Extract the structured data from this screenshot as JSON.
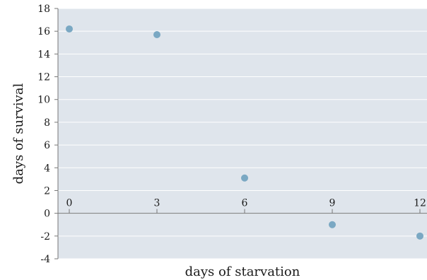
{
  "chart_data": {
    "type": "scatter",
    "title": "",
    "xlabel": "days of starvation",
    "ylabel": "days of survival",
    "xlim": [
      0,
      12
    ],
    "ylim": [
      -4,
      18
    ],
    "x_ticks": [
      0,
      3,
      6,
      9,
      12
    ],
    "y_ticks": [
      -4,
      -2,
      0,
      2,
      4,
      6,
      8,
      10,
      12,
      14,
      16,
      18
    ],
    "x_tick_labels": [
      "0",
      "3",
      "6",
      "9",
      "12"
    ],
    "y_tick_labels": [
      "-4",
      "-2",
      "0",
      "2",
      "4",
      "6",
      "8",
      "10",
      "12",
      "14",
      "16",
      "18"
    ],
    "grid": true,
    "points": [
      {
        "x": 0,
        "y": 16.2
      },
      {
        "x": 3,
        "y": 15.7
      },
      {
        "x": 6,
        "y": 3.1
      },
      {
        "x": 9,
        "y": -1.0
      },
      {
        "x": 12,
        "y": -2.0
      }
    ],
    "colors": {
      "background": "#dfe5ec",
      "grid": "#ffffff",
      "axis": "#777777",
      "point": "#7aa8c3"
    }
  }
}
